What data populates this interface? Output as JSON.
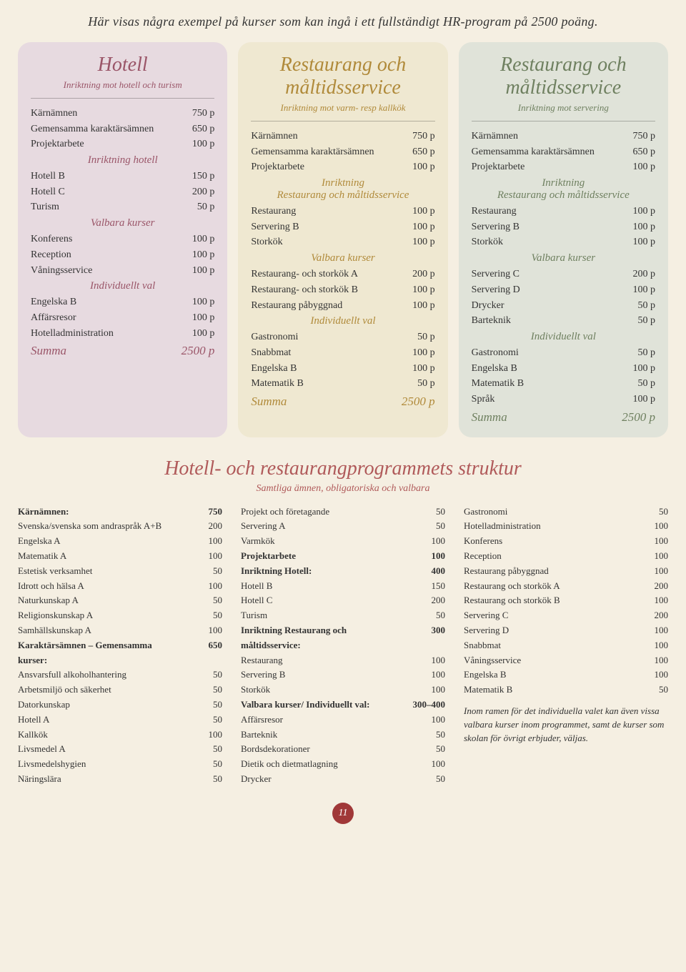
{
  "intro": "Här visas några exempel på kurser som kan ingå i ett fullständigt HR-program på 2500 poäng.",
  "cards": [
    {
      "bg": "#e7dae0",
      "accent": "#9a5568",
      "title": "Hotell",
      "subtitle": "Inriktning mot hotell och turism",
      "rows": [
        {
          "l": "Kärnämnen",
          "r": "750 p"
        },
        {
          "l": "Gemensamma karaktärsämnen",
          "r": "650 p",
          "multi": true
        },
        {
          "l": "Projektarbete",
          "r": "100 p"
        }
      ],
      "sections": [
        {
          "heading": "Inriktning hotell",
          "rows": [
            {
              "l": "Hotell B",
              "r": "150 p"
            },
            {
              "l": "Hotell C",
              "r": "200 p"
            },
            {
              "l": "Turism",
              "r": "50 p"
            }
          ]
        },
        {
          "heading": "Valbara kurser",
          "rows": [
            {
              "l": "Konferens",
              "r": "100 p"
            },
            {
              "l": "Reception",
              "r": "100 p"
            },
            {
              "l": "Våningsservice",
              "r": "100 p"
            }
          ]
        },
        {
          "heading": "Individuellt val",
          "rows": [
            {
              "l": "Engelska B",
              "r": "100 p"
            },
            {
              "l": "Affärsresor",
              "r": "100 p"
            },
            {
              "l": "Hotelladministration",
              "r": "100 p"
            }
          ]
        }
      ],
      "summaL": "Summa",
      "summaR": "2500 p"
    },
    {
      "bg": "#efe8d1",
      "accent": "#b08a3a",
      "title": "Restaurang och måltidsservice",
      "subtitle": "Inriktning mot varm- resp kallkök",
      "rows": [
        {
          "l": "Kärnämnen",
          "r": "750 p"
        },
        {
          "l": "Gemensamma karaktärsämnen",
          "r": "650 p",
          "multi": true
        },
        {
          "l": "Projektarbete",
          "r": "100 p"
        }
      ],
      "sections": [
        {
          "heading": "Inriktning\nRestaurang och måltidsservice",
          "rows": [
            {
              "l": "Restaurang",
              "r": "100 p"
            },
            {
              "l": "Servering B",
              "r": "100 p"
            },
            {
              "l": "Storkök",
              "r": "100 p"
            }
          ]
        },
        {
          "heading": "Valbara kurser",
          "rows": [
            {
              "l": "Restaurang- och storkök A",
              "r": "200 p",
              "multi": true
            },
            {
              "l": "Restaurang- och storkök B",
              "r": "100 p",
              "multi": true
            },
            {
              "l": "Restaurang påbyggnad",
              "r": "100 p"
            }
          ]
        },
        {
          "heading": "Individuellt val",
          "rows": [
            {
              "l": "Gastronomi",
              "r": "50 p"
            },
            {
              "l": "Snabbmat",
              "r": "100 p"
            },
            {
              "l": "Engelska B",
              "r": "100 p"
            },
            {
              "l": "Matematik B",
              "r": "50 p"
            }
          ]
        }
      ],
      "summaL": "Summa",
      "summaR": "2500 p"
    },
    {
      "bg": "#e0e3d9",
      "accent": "#6f8060",
      "title": "Restaurang och måltidsservice",
      "subtitle": "Inriktning mot servering",
      "rows": [
        {
          "l": "Kärnämnen",
          "r": "750 p"
        },
        {
          "l": "Gemensamma karaktärsämnen",
          "r": "650 p",
          "multi": true
        },
        {
          "l": "Projektarbete",
          "r": "100 p"
        }
      ],
      "sections": [
        {
          "heading": "Inriktning\nRestaurang och måltidsservice",
          "rows": [
            {
              "l": "Restaurang",
              "r": "100 p"
            },
            {
              "l": "Servering B",
              "r": "100 p"
            },
            {
              "l": "Storkök",
              "r": "100 p"
            }
          ]
        },
        {
          "heading": "Valbara kurser",
          "rows": [
            {
              "l": "Servering C",
              "r": "200 p"
            },
            {
              "l": "Servering D",
              "r": "100 p"
            },
            {
              "l": "Drycker",
              "r": "50 p"
            },
            {
              "l": "Barteknik",
              "r": "50 p"
            }
          ]
        },
        {
          "heading": "Individuellt val",
          "rows": [
            {
              "l": "Gastronomi",
              "r": "50 p"
            },
            {
              "l": "Engelska B",
              "r": "100 p"
            },
            {
              "l": "Matematik B",
              "r": "50 p"
            },
            {
              "l": "Språk",
              "r": "100 p"
            }
          ]
        }
      ],
      "summaL": "Summa",
      "summaR": "2500 p"
    }
  ],
  "struct": {
    "title": "Hotell- och restaurangprogrammets struktur",
    "subtitle": "Samtliga ämnen, obligatoriska och valbara",
    "note": "Inom ramen för det individuella valet kan även vissa valbara kurser inom programmet, samt de kurser som skolan för övrigt erbjuder, väljas.",
    "cols": [
      [
        {
          "l": "Kärnämnen:",
          "r": "750",
          "bold": true
        },
        {
          "l": "Svenska/svenska som andraspråk A+B",
          "r": "200",
          "multi": true
        },
        {
          "l": "Engelska A",
          "r": "100"
        },
        {
          "l": "Matematik A",
          "r": "100"
        },
        {
          "l": "Estetisk verksamhet",
          "r": "50"
        },
        {
          "l": "Idrott och hälsa A",
          "r": "100"
        },
        {
          "l": "Naturkunskap A",
          "r": "50"
        },
        {
          "l": "Religionskunskap A",
          "r": "50"
        },
        {
          "l": "Samhällskunskap A",
          "r": "100"
        },
        {
          "l": "Karaktärsämnen – Gemensamma kurser:",
          "r": "650",
          "bold": true,
          "multi": true
        },
        {
          "l": "Ansvarsfull alkoholhantering",
          "r": "50"
        },
        {
          "l": "Arbetsmiljö och säkerhet",
          "r": "50"
        },
        {
          "l": "Datorkunskap",
          "r": "50"
        },
        {
          "l": "Hotell A",
          "r": "50"
        },
        {
          "l": "Kallkök",
          "r": "100"
        },
        {
          "l": "Livsmedel A",
          "r": "50"
        },
        {
          "l": "Livsmedelshygien",
          "r": "50"
        },
        {
          "l": "Näringslära",
          "r": "50"
        }
      ],
      [
        {
          "l": "Projekt och företagande",
          "r": "50"
        },
        {
          "l": "Servering A",
          "r": "50"
        },
        {
          "l": "Varmkök",
          "r": "100"
        },
        {
          "l": "Projektarbete",
          "r": "100",
          "bold": true
        },
        {
          "l": "Inriktning Hotell:",
          "r": "400",
          "bold": true
        },
        {
          "l": "Hotell B",
          "r": "150"
        },
        {
          "l": "Hotell C",
          "r": "200"
        },
        {
          "l": "Turism",
          "r": "50"
        },
        {
          "l": "Inriktning Restaurang och måltidsservice:",
          "r": "300",
          "bold": true,
          "multi": true
        },
        {
          "l": "Restaurang",
          "r": "100"
        },
        {
          "l": "Servering B",
          "r": "100"
        },
        {
          "l": "Storkök",
          "r": "100"
        },
        {
          "l": "Valbara kurser/ Individuellt val:",
          "r": "300–400",
          "bold": true,
          "multi": true
        },
        {
          "l": "Affärsresor",
          "r": "100"
        },
        {
          "l": "Barteknik",
          "r": "50"
        },
        {
          "l": "Bordsdekorationer",
          "r": "50"
        },
        {
          "l": "Dietik och dietmatlagning",
          "r": "100"
        },
        {
          "l": "Drycker",
          "r": "50"
        }
      ],
      [
        {
          "l": "Gastronomi",
          "r": "50"
        },
        {
          "l": "Hotelladministration",
          "r": "100"
        },
        {
          "l": "Konferens",
          "r": "100"
        },
        {
          "l": "Reception",
          "r": "100"
        },
        {
          "l": "Restaurang påbyggnad",
          "r": "100"
        },
        {
          "l": "Restaurang och storkök A",
          "r": "200"
        },
        {
          "l": "Restaurang och storkök B",
          "r": "100"
        },
        {
          "l": "Servering C",
          "r": "200"
        },
        {
          "l": "Servering D",
          "r": "100"
        },
        {
          "l": "Snabbmat",
          "r": "100"
        },
        {
          "l": "Våningsservice",
          "r": "100"
        },
        {
          "l": "Engelska B",
          "r": "100"
        },
        {
          "l": "Matematik B",
          "r": "50"
        }
      ]
    ]
  },
  "pageNo": "11"
}
